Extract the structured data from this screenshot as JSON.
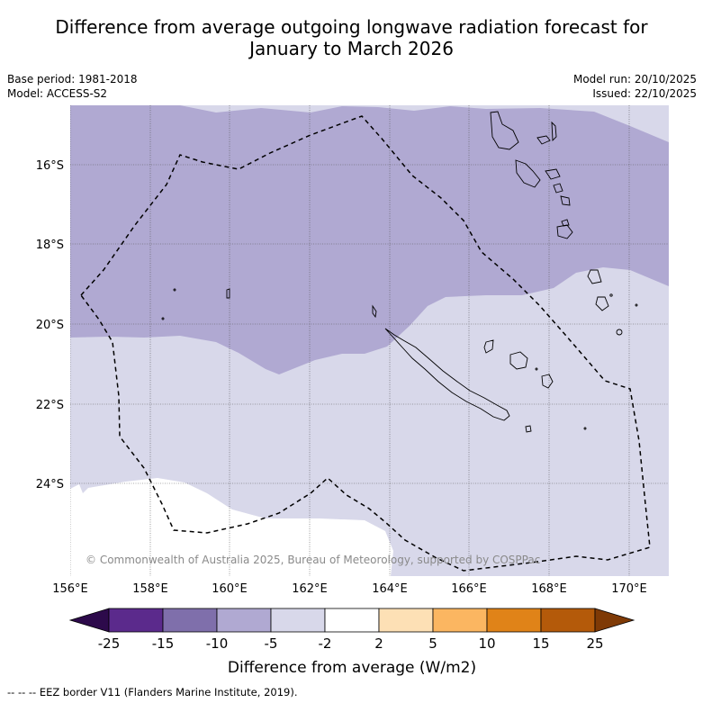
{
  "title": {
    "line1": "Difference from average outgoing longwave radiation forecast for",
    "line2": "January to March 2026"
  },
  "meta": {
    "base_period": "Base period: 1981-2018",
    "model": "Model: ACCESS-S2",
    "model_run": "Model run: 20/10/2025",
    "issued": "Issued: 22/10/2025"
  },
  "axes": {
    "lat_labels": [
      "16°S",
      "18°S",
      "20°S",
      "22°S",
      "24°S"
    ],
    "lon_labels": [
      "156°E",
      "158°E",
      "160°E",
      "162°E",
      "164°E",
      "166°E",
      "168°E",
      "170°E"
    ]
  },
  "copyright": "© Commonwealth of Australia 2025, Bureau of Meteorology, supported by COSPPac",
  "colorbar": {
    "label": "Difference from average (W/m2)",
    "ticks": [
      "-25",
      "-15",
      "-10",
      "-5",
      "-2",
      "2",
      "5",
      "10",
      "15",
      "25"
    ],
    "colors": {
      "under": "#2d0a4b",
      "c1": "#5b2a8c",
      "c2": "#7f6fab",
      "c3": "#b0a9d2",
      "c4": "#d8d8ea",
      "c5": "#ffffff",
      "c6": "#fde0b5",
      "c7": "#fbb661",
      "c8": "#e08318",
      "c9": "#b45a0a",
      "over": "#7f3a06"
    }
  },
  "legend_note": "-- -- -- EEZ border V11 (Flanders Marine Institute, 2019)."
}
